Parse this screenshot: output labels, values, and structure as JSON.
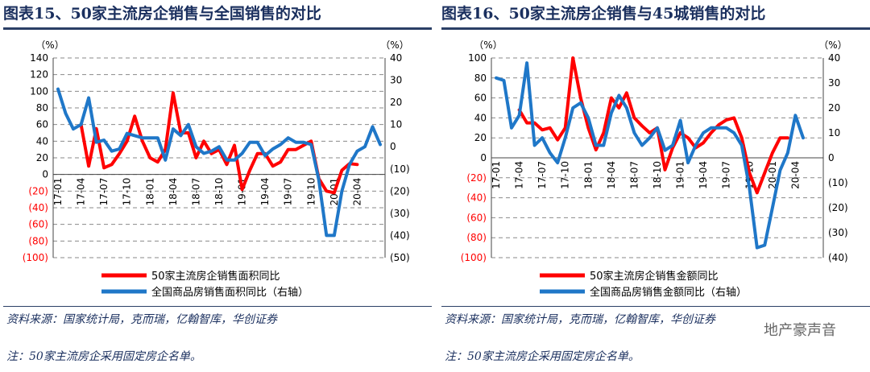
{
  "watermark": "地产豪声音",
  "colors": {
    "red": "#ff0000",
    "blue": "#1f77c8",
    "leftAxis": "#000000",
    "rightAxis": "#000000",
    "negLeft": "#ff0000"
  },
  "panels": [
    {
      "title": "图表15、50家主流房企销售与全国销售的对比",
      "source": "资料来源：国家统计局，克而瑞，亿翰智库，华创证券",
      "note": "注：50家主流房企采用固定房企名单。",
      "chart_data": {
        "type": "line",
        "left_unit": "（%）",
        "right_unit": "（%）",
        "left_ylim": [
          -100,
          140
        ],
        "left_ticks": [
          140,
          120,
          100,
          80,
          60,
          40,
          20,
          0,
          -20,
          -40,
          -60,
          -80,
          -100
        ],
        "left_tick_labels": [
          "140",
          "120",
          "100",
          "80",
          "60",
          "40",
          "20",
          "0",
          "(20)",
          "(40)",
          "(60)",
          "(80)",
          "(100)"
        ],
        "right_ylim": [
          -50,
          40
        ],
        "right_ticks": [
          40,
          30,
          20,
          10,
          0,
          -10,
          -20,
          -30,
          -40,
          -50
        ],
        "right_tick_labels": [
          "40",
          "30",
          "20",
          "10",
          "0",
          "(10)",
          "(20)",
          "(30)",
          "(40)",
          "(50)"
        ],
        "x_tick_labels": [
          "17-01",
          "17-04",
          "17-07",
          "17-10",
          "18-01",
          "18-04",
          "18-07",
          "18-10",
          "19-01",
          "19-04",
          "19-07",
          "19-10",
          "20-01",
          "20-04"
        ],
        "n_points": 43,
        "series": [
          {
            "name": "50家主流房企销售面积同比",
            "axis": "left",
            "color": "red",
            "start": 3,
            "values": [
              60,
              10,
              55,
              8,
              12,
              25,
              40,
              70,
              40,
              20,
              15,
              30,
              98,
              50,
              50,
              20,
              40,
              25,
              30,
              12,
              35,
              -18,
              5,
              25,
              25,
              10,
              15,
              30,
              30,
              35,
              40,
              -5,
              -20,
              -22,
              5,
              13,
              12
            ]
          },
          {
            "name": "全国商品房销售面积同比（右轴）",
            "axis": "right",
            "color": "blue",
            "start": 0,
            "values": [
              26,
              15,
              8,
              10,
              22,
              2,
              3,
              -2,
              -1,
              6,
              5,
              4,
              4,
              4,
              -6,
              8,
              5,
              10,
              0,
              -3,
              -2,
              0,
              -6,
              -6,
              -3,
              2,
              2,
              -4,
              -1,
              1,
              4,
              2,
              2,
              1,
              -15,
              -40,
              -40,
              -20,
              -8,
              -2,
              0,
              9,
              1
            ]
          }
        ]
      }
    },
    {
      "title": "图表16、50家主流房企销售与45城销售的对比",
      "source": "资料来源：国家统计局，克而瑞，亿翰智库，华创证券",
      "note": "注：50家主流房企采用固定房企名单。",
      "chart_data": {
        "type": "line",
        "left_unit": "（%）",
        "right_unit": "（%）",
        "left_ylim": [
          -100,
          100
        ],
        "left_ticks": [
          100,
          80,
          60,
          40,
          20,
          0,
          -20,
          -40,
          -60,
          -80,
          -100
        ],
        "left_tick_labels": [
          "100",
          "80",
          "60",
          "40",
          "20",
          "0",
          "(20)",
          "(40)",
          "(60)",
          "(80)",
          "(100)"
        ],
        "right_ylim": [
          -40,
          40
        ],
        "right_ticks": [
          40,
          30,
          20,
          10,
          0,
          -10,
          -20,
          -30,
          -40
        ],
        "right_tick_labels": [
          "40",
          "30",
          "20",
          "10",
          "0",
          "(10)",
          "(20)",
          "(30)",
          "(40)"
        ],
        "x_tick_labels": [
          "17-01",
          "17-04",
          "17-07",
          "17-10",
          "18-01",
          "18-04",
          "18-07",
          "18-10",
          "19-01",
          "19-04",
          "19-07",
          "19-10",
          "20-01",
          "20-04"
        ],
        "n_points": 43,
        "series": [
          {
            "name": "50家主流房企销售金额同比",
            "axis": "left",
            "color": "red",
            "start": 3,
            "values": [
              48,
              35,
              35,
              28,
              30,
              18,
              30,
              100,
              60,
              30,
              8,
              25,
              60,
              50,
              65,
              40,
              32,
              25,
              30,
              -12,
              10,
              25,
              20,
              10,
              15,
              25,
              33,
              38,
              40,
              20,
              -15,
              -35,
              -15,
              5,
              20,
              20
            ]
          },
          {
            "name": "全国商品房销售金额同比（右轴）",
            "axis": "right",
            "color": "blue",
            "start": 0,
            "values": [
              32,
              31,
              12,
              17,
              38,
              5,
              8,
              2,
              -2,
              8,
              20,
              22,
              16,
              5,
              5,
              18,
              25,
              20,
              10,
              5,
              8,
              12,
              3,
              5,
              15,
              -2,
              5,
              10,
              12,
              12,
              12,
              10,
              5,
              -12,
              -36,
              -35,
              -20,
              -5,
              2,
              17,
              8
            ]
          }
        ]
      }
    }
  ]
}
